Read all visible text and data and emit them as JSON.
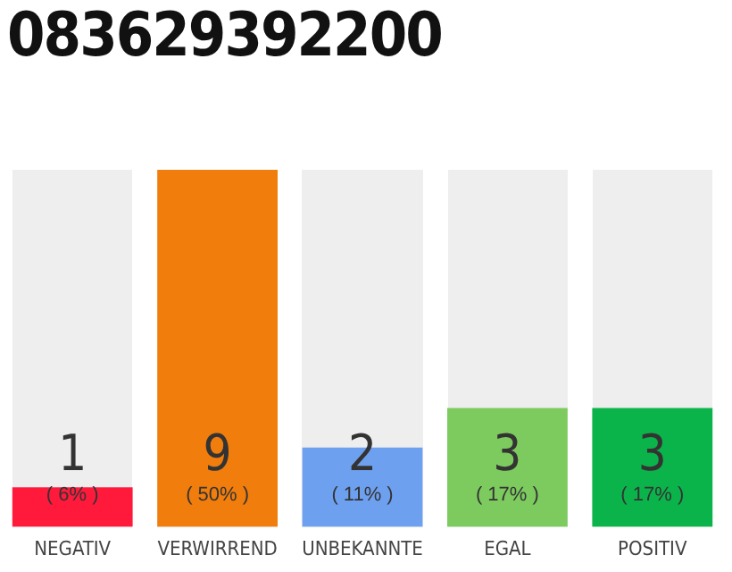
{
  "chart_data": {
    "type": "bar",
    "title": "083629392200",
    "categories": [
      "NEGATIV",
      "VERWIRREND",
      "UNBEKANNTE",
      "EGAL",
      "POSITIV"
    ],
    "values": [
      1,
      9,
      2,
      3,
      3
    ],
    "colors": [
      "#ff1a3c",
      "#f07d0c",
      "#6ea0f0",
      "#7dcb5f",
      "#0bb44a"
    ],
    "annotations": [
      "( 6% )",
      "( 50% )",
      "( 11% )",
      "( 17% )",
      "( 17% )"
    ],
    "data_labels": true,
    "tick_labels": "x",
    "grid": false,
    "legend": false
  }
}
